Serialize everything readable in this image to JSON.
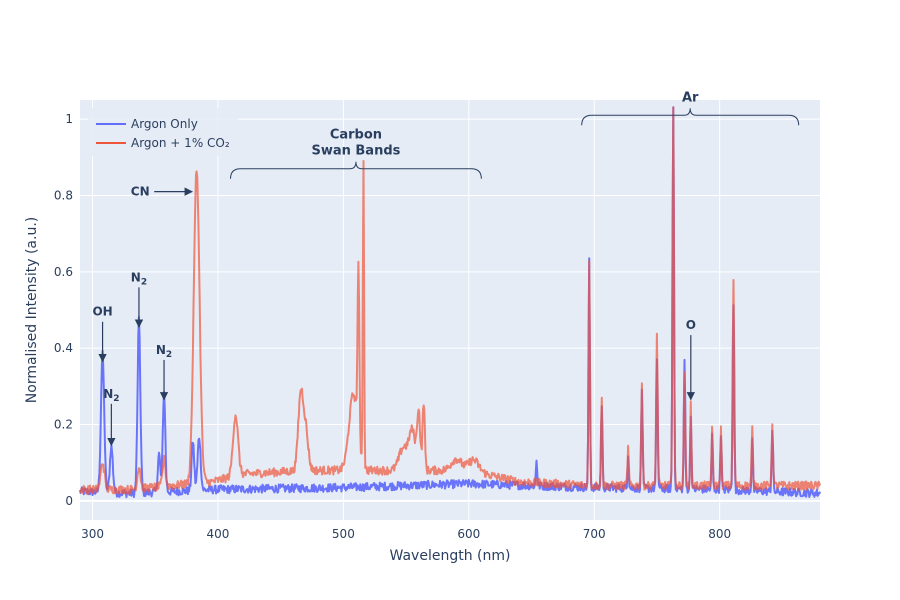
{
  "chart_data": {
    "type": "line",
    "xlabel": "Wavelength (nm)",
    "ylabel": "Normalised Intensity (a.u.)",
    "xlim": [
      290,
      880
    ],
    "ylim": [
      -0.05,
      1.05
    ],
    "x_ticks": [
      300,
      400,
      500,
      600,
      700,
      800
    ],
    "y_ticks": [
      0,
      0.2,
      0.4,
      0.6,
      0.8,
      1
    ],
    "grid": true,
    "legend_position": "top-left",
    "series": [
      {
        "name": "Argon Only",
        "color": "#636efa",
        "baseline": [
          [
            290,
            0.025
          ],
          [
            330,
            0.02
          ],
          [
            400,
            0.03
          ],
          [
            500,
            0.035
          ],
          [
            600,
            0.045
          ],
          [
            650,
            0.04
          ],
          [
            700,
            0.035
          ],
          [
            800,
            0.03
          ],
          [
            880,
            0.02
          ]
        ],
        "peaks": [
          {
            "x": 308,
            "y": 0.36,
            "w": 1.3
          },
          {
            "x": 315,
            "y": 0.12,
            "w": 1.2
          },
          {
            "x": 337,
            "y": 0.45,
            "w": 1.1
          },
          {
            "x": 353,
            "y": 0.1,
            "w": 1.0
          },
          {
            "x": 357,
            "y": 0.26,
            "w": 1.0
          },
          {
            "x": 380,
            "y": 0.13,
            "w": 1.0
          },
          {
            "x": 385,
            "y": 0.14,
            "w": 1.2
          },
          {
            "x": 654,
            "y": 0.07,
            "w": 0.5
          },
          {
            "x": 696,
            "y": 0.59,
            "w": 0.55
          },
          {
            "x": 706,
            "y": 0.22,
            "w": 0.55
          },
          {
            "x": 727,
            "y": 0.09,
            "w": 0.5
          },
          {
            "x": 738,
            "y": 0.26,
            "w": 0.55
          },
          {
            "x": 750,
            "y": 0.33,
            "w": 0.6
          },
          {
            "x": 763,
            "y": 1.0,
            "w": 0.6
          },
          {
            "x": 772,
            "y": 0.34,
            "w": 0.55
          },
          {
            "x": 777,
            "y": 0.2,
            "w": 0.5
          },
          {
            "x": 794,
            "y": 0.14,
            "w": 0.5
          },
          {
            "x": 801,
            "y": 0.15,
            "w": 0.5
          },
          {
            "x": 811,
            "y": 0.49,
            "w": 0.6
          },
          {
            "x": 826,
            "y": 0.14,
            "w": 0.5
          },
          {
            "x": 842,
            "y": 0.16,
            "w": 0.6
          }
        ]
      },
      {
        "name": "Argon + 1% CO₂",
        "color": "#ef553b",
        "baseline": [
          [
            290,
            0.03
          ],
          [
            330,
            0.03
          ],
          [
            395,
            0.05
          ],
          [
            420,
            0.07
          ],
          [
            470,
            0.08
          ],
          [
            540,
            0.08
          ],
          [
            560,
            0.08
          ],
          [
            600,
            0.08
          ],
          [
            640,
            0.05
          ],
          [
            700,
            0.04
          ],
          [
            800,
            0.04
          ],
          [
            880,
            0.04
          ]
        ],
        "peaks": [
          {
            "x": 308,
            "y": 0.07,
            "w": 1.5
          },
          {
            "x": 337,
            "y": 0.06,
            "w": 1.2
          },
          {
            "x": 357,
            "y": 0.07,
            "w": 1.2
          },
          {
            "x": 383,
            "y": 0.82,
            "w": 2.3
          },
          {
            "x": 414,
            "y": 0.16,
            "w": 2.0
          },
          {
            "x": 466,
            "y": 0.2,
            "w": 2.0
          },
          {
            "x": 470,
            "y": 0.1,
            "w": 2.0
          },
          {
            "x": 508,
            "y": 0.2,
            "w": 3.5
          },
          {
            "x": 512,
            "y": 0.44,
            "w": 0.7
          },
          {
            "x": 516,
            "y": 0.79,
            "w": 0.5
          },
          {
            "x": 548,
            "y": 0.06,
            "w": 3.5
          },
          {
            "x": 555,
            "y": 0.1,
            "w": 2.5
          },
          {
            "x": 560,
            "y": 0.15,
            "w": 1.2
          },
          {
            "x": 564,
            "y": 0.18,
            "w": 0.9
          },
          {
            "x": 590,
            "y": 0.03,
            "w": 4.0
          },
          {
            "x": 604,
            "y": 0.03,
            "w": 4.0
          },
          {
            "x": 696,
            "y": 0.59,
            "w": 0.55
          },
          {
            "x": 706,
            "y": 0.23,
            "w": 0.55
          },
          {
            "x": 727,
            "y": 0.1,
            "w": 0.5
          },
          {
            "x": 738,
            "y": 0.27,
            "w": 0.55
          },
          {
            "x": 750,
            "y": 0.39,
            "w": 0.6
          },
          {
            "x": 763,
            "y": 0.99,
            "w": 0.6
          },
          {
            "x": 772,
            "y": 0.3,
            "w": 0.55
          },
          {
            "x": 777,
            "y": 0.21,
            "w": 0.5
          },
          {
            "x": 794,
            "y": 0.15,
            "w": 0.5
          },
          {
            "x": 801,
            "y": 0.15,
            "w": 0.5
          },
          {
            "x": 811,
            "y": 0.54,
            "w": 0.6
          },
          {
            "x": 826,
            "y": 0.15,
            "w": 0.5
          },
          {
            "x": 842,
            "y": 0.15,
            "w": 0.6
          }
        ]
      }
    ],
    "annotations": [
      {
        "text": "OH",
        "x": 308,
        "y": 0.36,
        "label_y": 0.485
      },
      {
        "text": "N₂",
        "x": 315,
        "y": 0.14,
        "label_y": 0.27
      },
      {
        "text": "N₂",
        "x": 337,
        "y": 0.45,
        "label_y": 0.575
      },
      {
        "text": "N₂",
        "x": 357,
        "y": 0.26,
        "label_y": 0.385
      },
      {
        "text": "O",
        "x": 777,
        "y": 0.26,
        "label_y": 0.45
      }
    ],
    "cn_annotation": {
      "text": "CN",
      "x": 381,
      "y": 0.81,
      "label_x": 338
    },
    "braces": [
      {
        "lines": [
          "Carbon",
          "Swan Bands"
        ],
        "x0": 410,
        "x1": 610,
        "y": 0.87
      },
      {
        "lines": [
          "Ar"
        ],
        "x0": 690,
        "x1": 863,
        "y": 1.01
      }
    ]
  }
}
